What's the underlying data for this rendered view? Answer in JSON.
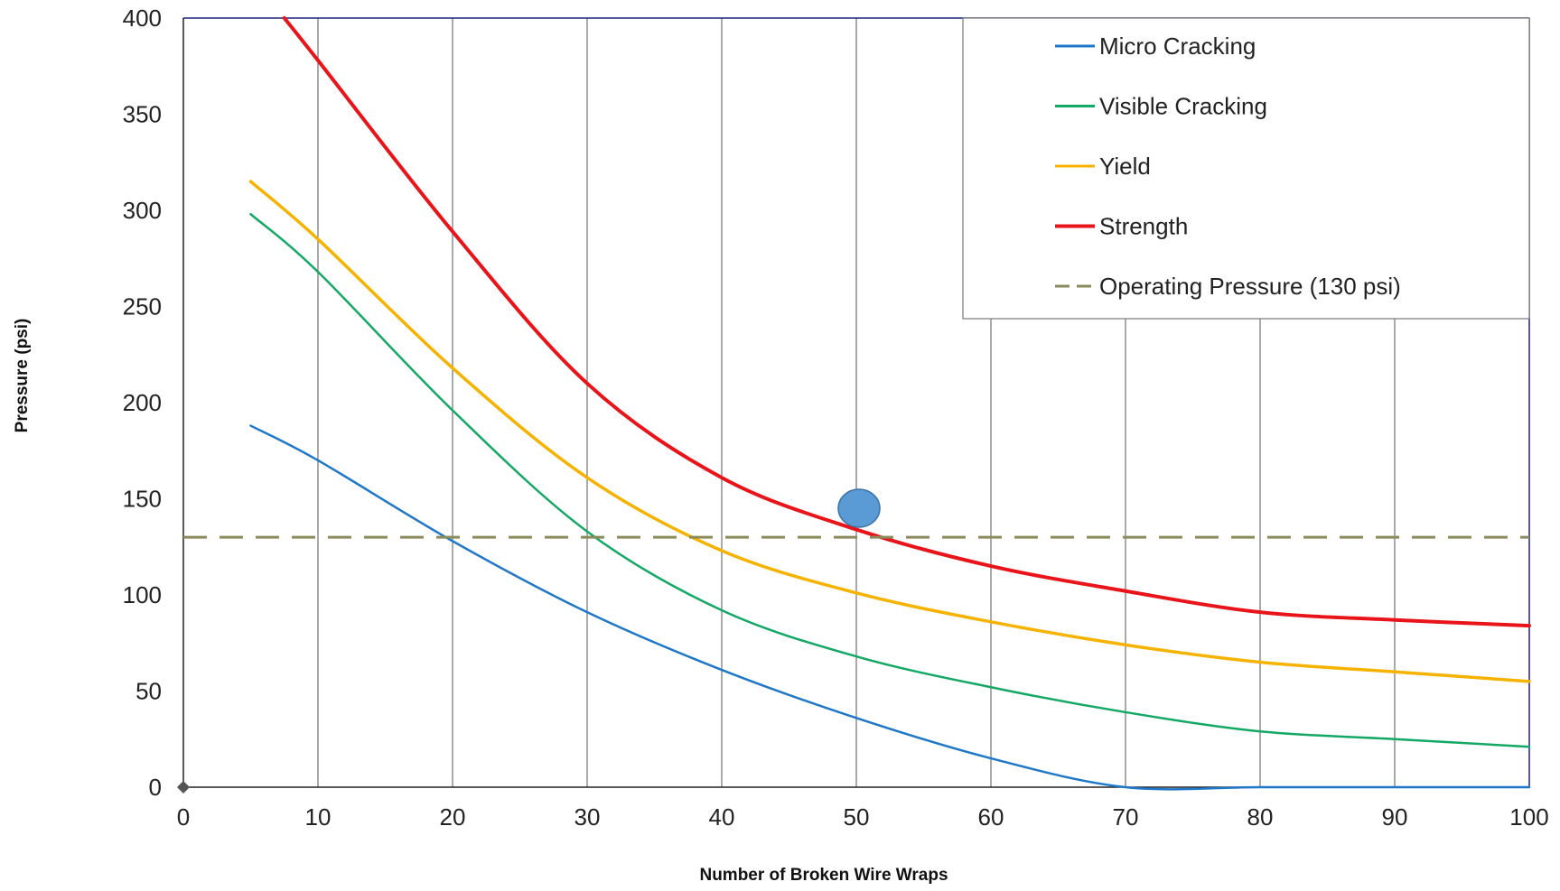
{
  "chart_data": {
    "type": "line",
    "title": "",
    "xlabel": "Number of Broken Wire Wraps",
    "ylabel": "Pressure (psi)",
    "xlim": [
      0,
      100
    ],
    "ylim": [
      0,
      400
    ],
    "xticks": [
      0,
      10,
      20,
      30,
      40,
      50,
      60,
      70,
      80,
      90,
      100
    ],
    "yticks": [
      0,
      50,
      100,
      150,
      200,
      250,
      300,
      350,
      400
    ],
    "grid": "vertical",
    "legend_position": "top-right",
    "series": [
      {
        "name": "Micro Cracking",
        "color": "#1f77c8",
        "dashed": false,
        "x": [
          5,
          10,
          20,
          30,
          40,
          50,
          60,
          70,
          80,
          90,
          100
        ],
        "y": [
          188,
          170,
          128,
          91,
          61,
          36,
          15,
          0,
          0,
          0,
          0
        ]
      },
      {
        "name": "Visible Cracking",
        "color": "#14a865",
        "dashed": false,
        "x": [
          5,
          10,
          20,
          30,
          40,
          50,
          60,
          70,
          80,
          90,
          100
        ],
        "y": [
          298,
          268,
          196,
          133,
          92,
          68,
          52,
          39,
          29,
          25,
          21
        ]
      },
      {
        "name": "Yield",
        "color": "#f5b300",
        "dashed": false,
        "x": [
          5,
          10,
          20,
          30,
          40,
          50,
          60,
          70,
          80,
          90,
          100
        ],
        "y": [
          315,
          285,
          218,
          161,
          123,
          101,
          86,
          74,
          65,
          60,
          55
        ]
      },
      {
        "name": "Strength",
        "color": "#e8141a",
        "dashed": false,
        "x": [
          7.5,
          10,
          20,
          30,
          40,
          50,
          60,
          70,
          80,
          90,
          100
        ],
        "y": [
          400,
          378,
          289,
          210,
          161,
          134,
          115,
          102,
          91,
          87,
          84
        ]
      },
      {
        "name": "Operating Pressure (130 psi)",
        "color": "#8a8a5a",
        "dashed": true,
        "x": [
          0,
          100
        ],
        "y": [
          130,
          130
        ]
      }
    ],
    "annotations": [
      {
        "type": "marker",
        "shape": "ellipse",
        "color": "#5b9bd5",
        "x": 50,
        "y": 146
      }
    ]
  }
}
